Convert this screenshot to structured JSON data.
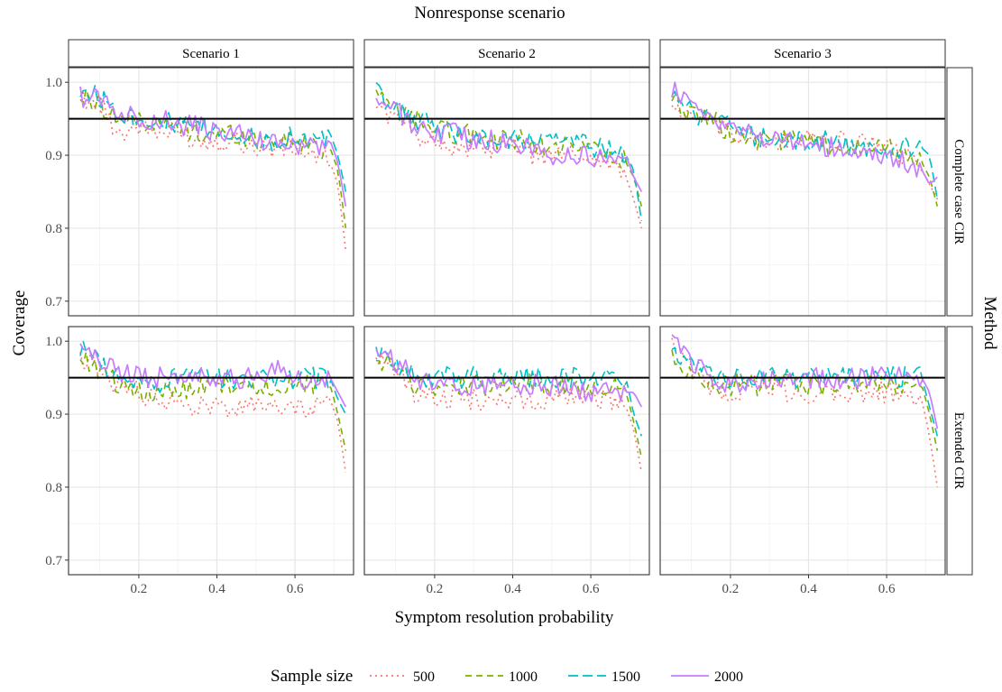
{
  "chart_data": {
    "type": "line",
    "title": "Nonresponse scenario",
    "xlabel": "Symptom resolution probability",
    "ylabel": "Coverage",
    "row_facet_title": "Method",
    "columns": [
      "Scenario 1",
      "Scenario 2",
      "Scenario 3"
    ],
    "rows": [
      "Complete case CIR",
      "Extended CIR"
    ],
    "xlim": [
      0.02,
      0.75
    ],
    "ylim": [
      0.68,
      1.02
    ],
    "x_ticks": [
      0.2,
      0.4,
      0.6
    ],
    "x_tick_labels": [
      "0.2",
      "0.4",
      "0.6"
    ],
    "y_ticks": [
      0.7,
      0.8,
      0.9,
      1.0
    ],
    "y_tick_labels": [
      "0.7",
      "0.8",
      "0.9",
      "1.0"
    ],
    "reference_line": 0.95,
    "grid": true,
    "legend": {
      "title": "Sample size",
      "position": "bottom",
      "entries": [
        {
          "name": "500",
          "color": "#F8766D",
          "dash": "dotted"
        },
        {
          "name": "1000",
          "color": "#7CAE00",
          "dash": "dashed"
        },
        {
          "name": "1500",
          "color": "#00BFC4",
          "dash": "longdash"
        },
        {
          "name": "2000",
          "color": "#C77CFF",
          "dash": "solid"
        }
      ]
    },
    "x": [
      0.05,
      0.1,
      0.15,
      0.2,
      0.25,
      0.3,
      0.35,
      0.4,
      0.45,
      0.5,
      0.55,
      0.6,
      0.65,
      0.69,
      0.71,
      0.73
    ],
    "panels": [
      {
        "row": 0,
        "col": 0,
        "series": [
          {
            "name": "500",
            "values": [
              0.98,
              0.97,
              0.93,
              0.94,
              0.93,
              0.93,
              0.92,
              0.92,
              0.92,
              0.91,
              0.91,
              0.91,
              0.9,
              0.89,
              0.86,
              0.77
            ]
          },
          {
            "name": "1000",
            "values": [
              0.98,
              0.97,
              0.95,
              0.95,
              0.94,
              0.94,
              0.93,
              0.93,
              0.93,
              0.92,
              0.92,
              0.92,
              0.91,
              0.91,
              0.88,
              0.8
            ]
          },
          {
            "name": "1500",
            "values": [
              0.99,
              0.98,
              0.96,
              0.95,
              0.95,
              0.94,
              0.94,
              0.93,
              0.93,
              0.92,
              0.92,
              0.93,
              0.92,
              0.93,
              0.9,
              0.85
            ]
          },
          {
            "name": "2000",
            "values": [
              0.98,
              0.98,
              0.96,
              0.95,
              0.95,
              0.94,
              0.94,
              0.93,
              0.93,
              0.92,
              0.92,
              0.91,
              0.91,
              0.92,
              0.89,
              0.83
            ]
          }
        ]
      },
      {
        "row": 0,
        "col": 1,
        "series": [
          {
            "name": "500",
            "values": [
              0.97,
              0.95,
              0.93,
              0.92,
              0.91,
              0.91,
              0.91,
              0.91,
              0.9,
              0.9,
              0.9,
              0.9,
              0.89,
              0.87,
              0.84,
              0.8
            ]
          },
          {
            "name": "1000",
            "values": [
              0.98,
              0.96,
              0.95,
              0.94,
              0.93,
              0.93,
              0.92,
              0.92,
              0.92,
              0.91,
              0.91,
              0.91,
              0.9,
              0.89,
              0.87,
              0.83
            ]
          },
          {
            "name": "1500",
            "values": [
              0.99,
              0.96,
              0.95,
              0.94,
              0.93,
              0.93,
              0.92,
              0.92,
              0.92,
              0.92,
              0.92,
              0.91,
              0.91,
              0.9,
              0.88,
              0.81
            ]
          },
          {
            "name": "2000",
            "values": [
              0.98,
              0.96,
              0.94,
              0.93,
              0.93,
              0.92,
              0.92,
              0.91,
              0.91,
              0.9,
              0.9,
              0.9,
              0.89,
              0.9,
              0.87,
              0.85
            ]
          }
        ]
      },
      {
        "row": 0,
        "col": 2,
        "series": [
          {
            "name": "500",
            "values": [
              0.97,
              0.95,
              0.94,
              0.93,
              0.92,
              0.92,
              0.92,
              0.92,
              0.92,
              0.92,
              0.92,
              0.91,
              0.9,
              0.88,
              0.86,
              0.84
            ]
          },
          {
            "name": "1000",
            "values": [
              0.97,
              0.96,
              0.95,
              0.93,
              0.92,
              0.92,
              0.92,
              0.92,
              0.91,
              0.91,
              0.91,
              0.91,
              0.9,
              0.89,
              0.87,
              0.83
            ]
          },
          {
            "name": "1500",
            "values": [
              0.98,
              0.96,
              0.95,
              0.94,
              0.93,
              0.92,
              0.92,
              0.92,
              0.92,
              0.91,
              0.91,
              0.91,
              0.91,
              0.91,
              0.9,
              0.84
            ]
          },
          {
            "name": "2000",
            "values": [
              0.99,
              0.97,
              0.95,
              0.94,
              0.93,
              0.92,
              0.92,
              0.92,
              0.91,
              0.91,
              0.9,
              0.9,
              0.89,
              0.88,
              0.86,
              0.87
            ]
          }
        ]
      },
      {
        "row": 1,
        "col": 0,
        "series": [
          {
            "name": "500",
            "values": [
              0.98,
              0.96,
              0.94,
              0.93,
              0.92,
              0.92,
              0.91,
              0.91,
              0.91,
              0.91,
              0.91,
              0.91,
              0.91,
              0.92,
              0.89,
              0.82
            ]
          },
          {
            "name": "1000",
            "values": [
              0.98,
              0.96,
              0.94,
              0.93,
              0.93,
              0.93,
              0.94,
              0.94,
              0.94,
              0.94,
              0.93,
              0.94,
              0.94,
              0.94,
              0.9,
              0.85
            ]
          },
          {
            "name": "1500",
            "values": [
              0.99,
              0.97,
              0.95,
              0.94,
              0.94,
              0.95,
              0.95,
              0.95,
              0.95,
              0.95,
              0.95,
              0.95,
              0.95,
              0.95,
              0.92,
              0.9
            ]
          },
          {
            "name": "2000",
            "values": [
              0.99,
              0.97,
              0.96,
              0.95,
              0.95,
              0.95,
              0.95,
              0.95,
              0.95,
              0.95,
              0.96,
              0.95,
              0.95,
              0.95,
              0.93,
              0.91
            ]
          }
        ]
      },
      {
        "row": 1,
        "col": 1,
        "series": [
          {
            "name": "500",
            "values": [
              0.98,
              0.96,
              0.93,
              0.92,
              0.92,
              0.92,
              0.92,
              0.92,
              0.92,
              0.92,
              0.93,
              0.92,
              0.92,
              0.91,
              0.88,
              0.82
            ]
          },
          {
            "name": "1000",
            "values": [
              0.98,
              0.96,
              0.94,
              0.94,
              0.94,
              0.94,
              0.94,
              0.94,
              0.94,
              0.94,
              0.94,
              0.94,
              0.94,
              0.93,
              0.89,
              0.84
            ]
          },
          {
            "name": "1500",
            "values": [
              0.99,
              0.97,
              0.95,
              0.95,
              0.95,
              0.95,
              0.95,
              0.95,
              0.95,
              0.95,
              0.95,
              0.95,
              0.96,
              0.95,
              0.9,
              0.87
            ]
          },
          {
            "name": "2000",
            "values": [
              0.99,
              0.97,
              0.95,
              0.94,
              0.94,
              0.94,
              0.94,
              0.94,
              0.94,
              0.94,
              0.93,
              0.93,
              0.93,
              0.93,
              0.93,
              0.91
            ]
          }
        ]
      },
      {
        "row": 1,
        "col": 2,
        "series": [
          {
            "name": "500",
            "values": [
              0.99,
              0.96,
              0.94,
              0.93,
              0.94,
              0.94,
              0.93,
              0.93,
              0.93,
              0.93,
              0.93,
              0.93,
              0.93,
              0.92,
              0.87,
              0.8
            ]
          },
          {
            "name": "1000",
            "values": [
              0.98,
              0.95,
              0.94,
              0.94,
              0.94,
              0.94,
              0.94,
              0.94,
              0.94,
              0.94,
              0.94,
              0.94,
              0.94,
              0.94,
              0.9,
              0.85
            ]
          },
          {
            "name": "1500",
            "values": [
              0.99,
              0.97,
              0.95,
              0.95,
              0.95,
              0.95,
              0.95,
              0.95,
              0.95,
              0.95,
              0.95,
              0.95,
              0.95,
              0.95,
              0.91,
              0.87
            ]
          },
          {
            "name": "2000",
            "values": [
              1.0,
              0.97,
              0.95,
              0.94,
              0.94,
              0.95,
              0.95,
              0.95,
              0.95,
              0.95,
              0.95,
              0.95,
              0.95,
              0.95,
              0.93,
              0.88
            ]
          }
        ]
      }
    ]
  }
}
